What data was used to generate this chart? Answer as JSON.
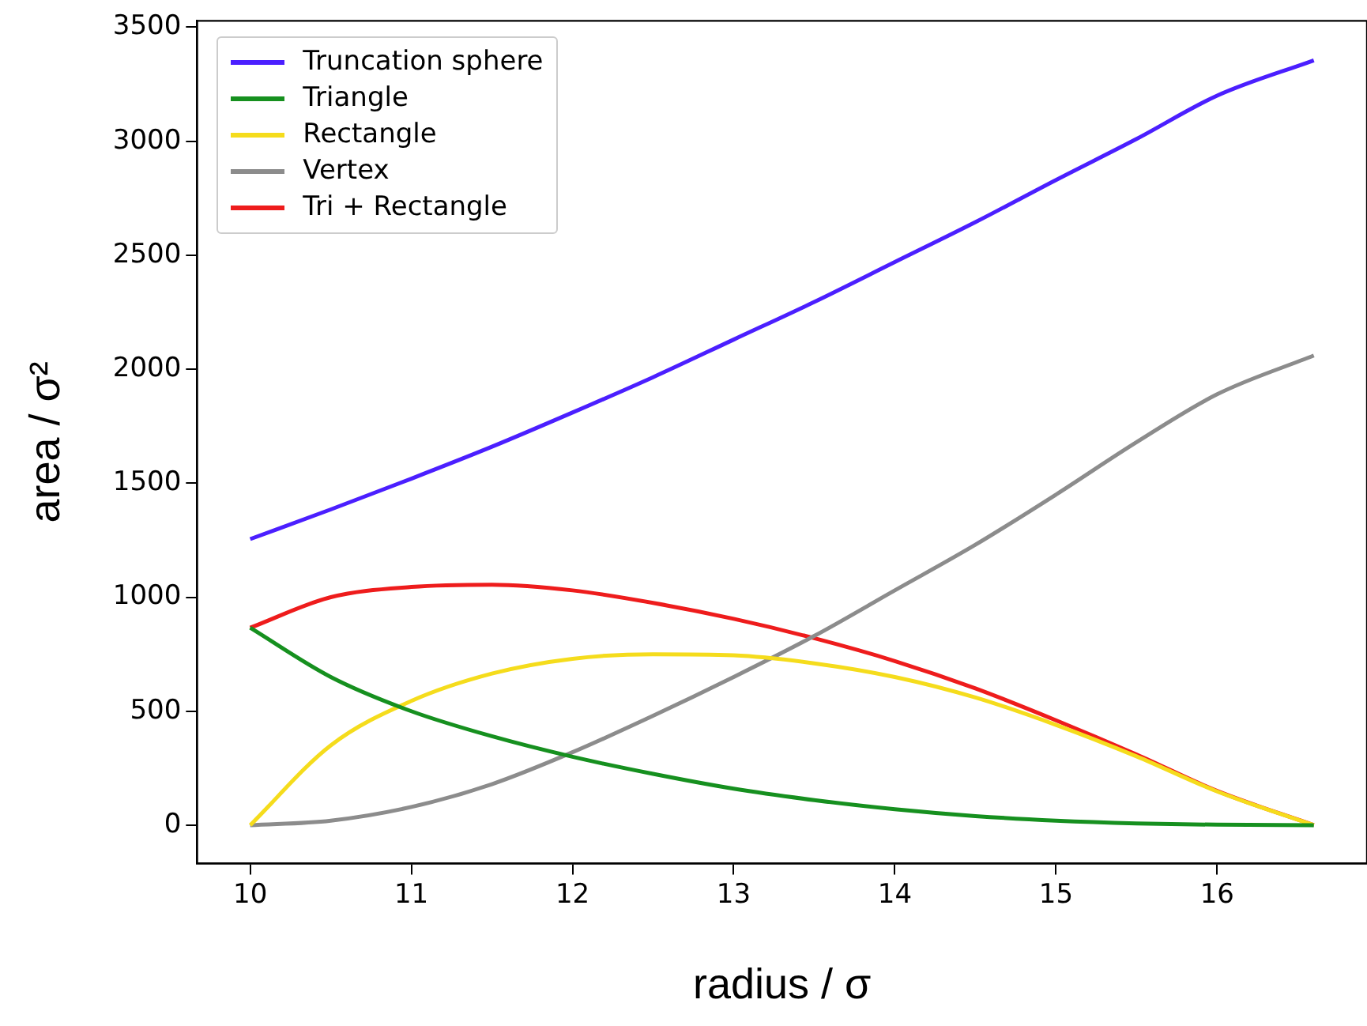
{
  "chart_data": {
    "type": "line",
    "xlabel": "radius / σ",
    "ylabel": "area / σ²",
    "x": [
      10,
      10.5,
      11,
      11.5,
      12,
      12.5,
      13,
      13.5,
      14,
      14.5,
      15,
      15.5,
      16,
      16.6
    ],
    "series": [
      {
        "name": "Truncation sphere",
        "color": "#4b1fff",
        "values": [
          1255,
          1385,
          1520,
          1660,
          1810,
          1965,
          2130,
          2295,
          2470,
          2645,
          2830,
          3010,
          3200,
          3355
        ]
      },
      {
        "name": "Triangle",
        "color": "#16901f",
        "values": [
          866,
          650,
          500,
          390,
          300,
          225,
          160,
          110,
          70,
          40,
          20,
          8,
          2,
          0
        ]
      },
      {
        "name": "Rectangle",
        "color": "#f5dc1c",
        "values": [
          0,
          350,
          545,
          665,
          730,
          750,
          745,
          710,
          650,
          560,
          440,
          302,
          148,
          0
        ]
      },
      {
        "name": "Vertex",
        "color": "#8c8c8c",
        "values": [
          0,
          20,
          80,
          180,
          320,
          480,
          650,
          830,
          1030,
          1230,
          1450,
          1680,
          1890,
          2060
        ]
      },
      {
        "name": "Tri + Rectangle",
        "color": "#ee1c1c",
        "values": [
          866,
          1000,
          1045,
          1055,
          1030,
          975,
          905,
          820,
          720,
          600,
          460,
          310,
          150,
          0
        ]
      }
    ],
    "xlim": [
      9.67,
      16.93
    ],
    "xticks": [
      10,
      11,
      12,
      13,
      14,
      15,
      16
    ],
    "ylim": [
      -168,
      3528
    ],
    "yticks": [
      0,
      500,
      1000,
      1500,
      2000,
      2500,
      3000,
      3500
    ],
    "grid": false,
    "legend": "top left",
    "marker": "none",
    "line_style": "solid"
  }
}
